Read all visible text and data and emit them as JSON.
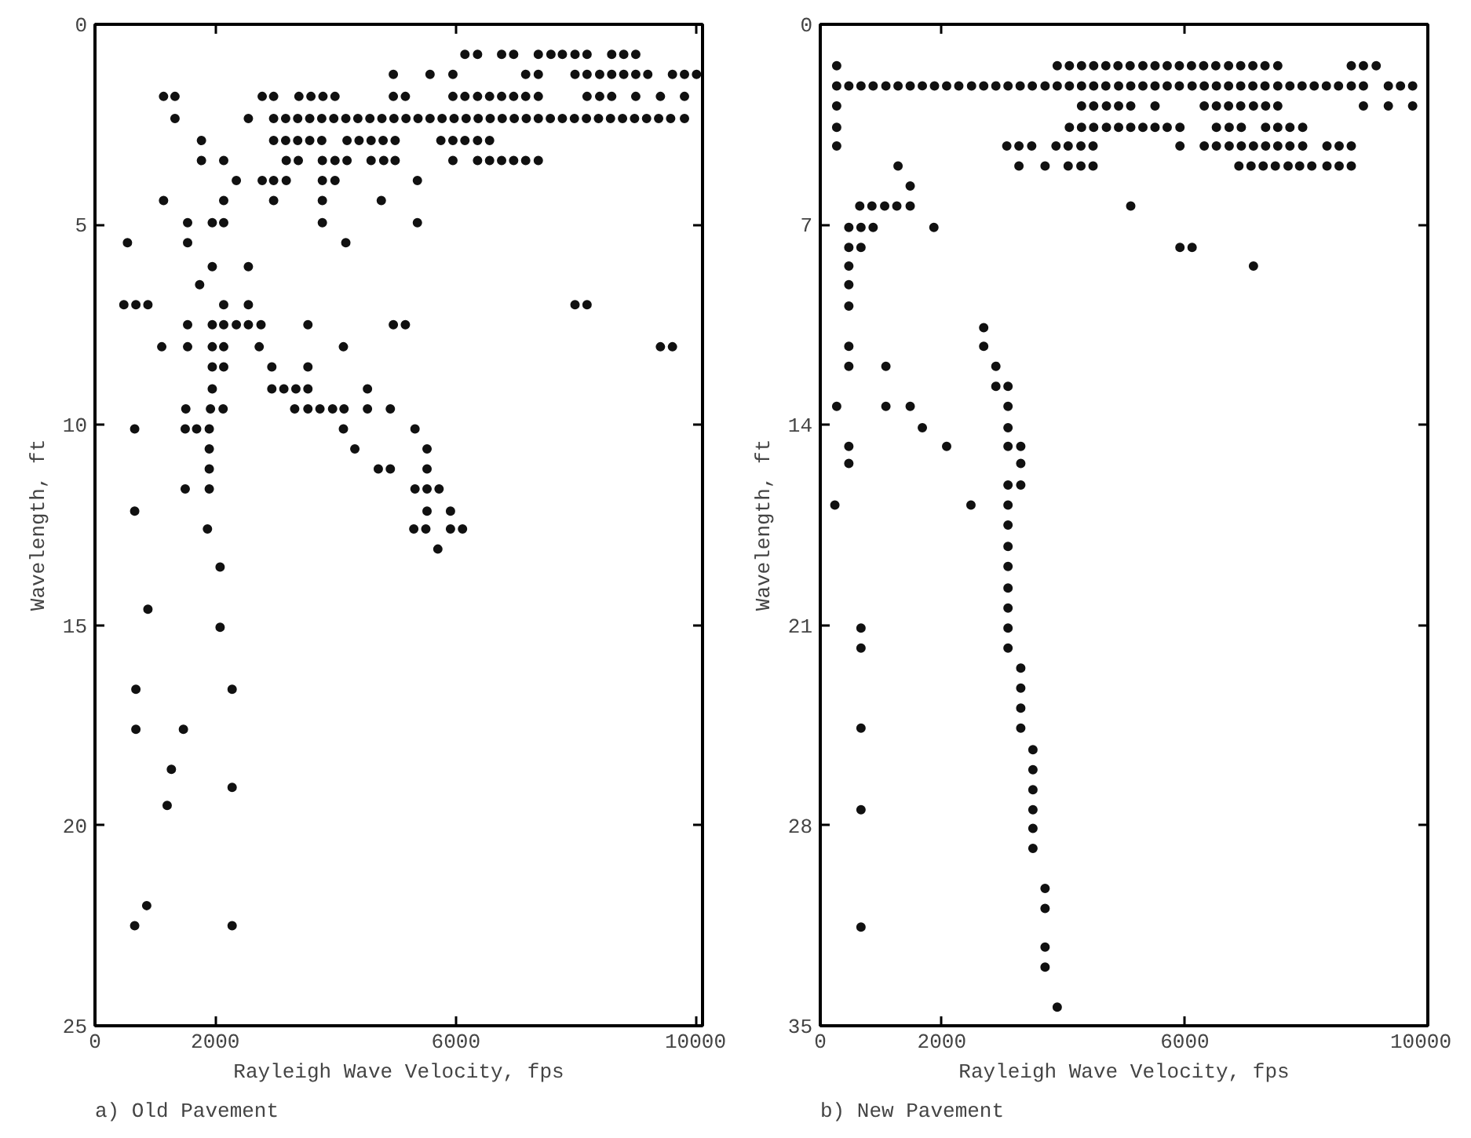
{
  "chart_data": [
    {
      "type": "scatter",
      "title": "a) Old Pavement",
      "xlabel": "Rayleigh Wave Velocity, fps",
      "ylabel": "Wavelength, ft",
      "marker": "circle",
      "grid": false,
      "xlim": [
        0,
        10100
      ],
      "ylim": [
        25,
        0
      ],
      "xticks": [
        0,
        2000,
        6000,
        10000
      ],
      "yticks": [
        0,
        5,
        10,
        15,
        20,
        25
      ],
      "series": [
        {
          "color": "#111111",
          "x": [
            6150,
            6360,
            6760,
            6960,
            7370,
            7580,
            7770,
            7980,
            8180,
            8590,
            8790,
            8990,
            4960,
            5570,
            5950,
            7160,
            7370,
            7980,
            8180,
            8390,
            8590,
            8790,
            8990,
            9190,
            9600,
            9800,
            10000,
            1140,
            1330,
            2780,
            2970,
            3390,
            3590,
            3790,
            3990,
            4960,
            5160,
            5950,
            6150,
            6360,
            6560,
            6760,
            6960,
            7160,
            7370,
            8180,
            8390,
            8590,
            8990,
            9400,
            9800,
            1330,
            2550,
            2970,
            3170,
            3370,
            3570,
            3770,
            3970,
            4170,
            4370,
            4570,
            4770,
            4970,
            5170,
            5370,
            5570,
            5770,
            5970,
            6170,
            6370,
            6570,
            6770,
            6970,
            7170,
            7370,
            7570,
            7770,
            7970,
            8170,
            8370,
            8570,
            8770,
            8970,
            9170,
            9370,
            9570,
            9800,
            1770,
            2970,
            3170,
            3370,
            3570,
            3770,
            4190,
            4390,
            4590,
            4790,
            4990,
            5750,
            5950,
            6150,
            6360,
            6560,
            1770,
            2140,
            3180,
            3380,
            3780,
            3990,
            4190,
            4590,
            4800,
            4990,
            5950,
            6360,
            6560,
            6760,
            6960,
            7160,
            7370,
            2350,
            2780,
            2970,
            3180,
            3780,
            3990,
            5360,
            1140,
            2140,
            2970,
            3780,
            4760,
            1540,
            1950,
            2140,
            3780,
            5360,
            540,
            1540,
            4170,
            1950,
            2550,
            1740,
            480,
            680,
            880,
            2140,
            2550,
            7980,
            8180,
            1540,
            1950,
            2140,
            2350,
            2550,
            2760,
            3540,
            4960,
            5160,
            1110,
            1540,
            1950,
            2140,
            2730,
            4130,
            9400,
            9600,
            1950,
            2140,
            2940,
            3540,
            1950,
            2940,
            3140,
            3340,
            3540,
            4530,
            1510,
            1920,
            2130,
            3320,
            3540,
            3740,
            3950,
            4140,
            4530,
            4910,
            660,
            1500,
            1690,
            1900,
            4130,
            5320,
            1900,
            4320,
            5520,
            1900,
            4710,
            4910,
            5520,
            1500,
            1900,
            5320,
            5520,
            5720,
            660,
            5520,
            5910,
            1870,
            5300,
            5500,
            5910,
            6110,
            5700,
            2080,
            880,
            2080,
            680,
            2280,
            680,
            1470,
            1270,
            2280,
            1200,
            860,
            660,
            2280
          ],
          "values": [
            0.75,
            0.75,
            0.75,
            0.75,
            0.75,
            0.75,
            0.75,
            0.75,
            0.75,
            0.75,
            0.75,
            0.75,
            1.25,
            1.25,
            1.25,
            1.25,
            1.25,
            1.25,
            1.25,
            1.25,
            1.25,
            1.25,
            1.25,
            1.25,
            1.25,
            1.25,
            1.25,
            1.8,
            1.8,
            1.8,
            1.8,
            1.8,
            1.8,
            1.8,
            1.8,
            1.8,
            1.8,
            1.8,
            1.8,
            1.8,
            1.8,
            1.8,
            1.8,
            1.8,
            1.8,
            1.8,
            1.8,
            1.8,
            1.8,
            1.8,
            1.8,
            2.35,
            2.35,
            2.35,
            2.35,
            2.35,
            2.35,
            2.35,
            2.35,
            2.35,
            2.35,
            2.35,
            2.35,
            2.35,
            2.35,
            2.35,
            2.35,
            2.35,
            2.35,
            2.35,
            2.35,
            2.35,
            2.35,
            2.35,
            2.35,
            2.35,
            2.35,
            2.35,
            2.35,
            2.35,
            2.35,
            2.35,
            2.35,
            2.35,
            2.35,
            2.35,
            2.35,
            2.35,
            2.9,
            2.9,
            2.9,
            2.9,
            2.9,
            2.9,
            2.9,
            2.9,
            2.9,
            2.9,
            2.9,
            2.9,
            2.9,
            2.9,
            2.9,
            2.9,
            3.4,
            3.4,
            3.4,
            3.4,
            3.4,
            3.4,
            3.4,
            3.4,
            3.4,
            3.4,
            3.4,
            3.4,
            3.4,
            3.4,
            3.4,
            3.4,
            3.4,
            3.9,
            3.9,
            3.9,
            3.9,
            3.9,
            3.9,
            3.9,
            4.4,
            4.4,
            4.4,
            4.4,
            4.4,
            4.95,
            4.95,
            4.95,
            4.95,
            4.95,
            5.45,
            5.45,
            5.45,
            6.05,
            6.05,
            6.5,
            7.0,
            7.0,
            7.0,
            7.0,
            7.0,
            7.0,
            7.0,
            7.5,
            7.5,
            7.5,
            7.5,
            7.5,
            7.5,
            7.5,
            7.5,
            7.5,
            8.05,
            8.05,
            8.05,
            8.05,
            8.05,
            8.05,
            8.05,
            8.05,
            8.55,
            8.55,
            8.55,
            8.55,
            9.1,
            9.1,
            9.1,
            9.1,
            9.1,
            9.1,
            9.6,
            9.6,
            9.6,
            9.6,
            9.6,
            9.6,
            9.6,
            9.6,
            9.6,
            9.6,
            10.1,
            10.1,
            10.1,
            10.1,
            10.1,
            10.1,
            10.6,
            10.6,
            10.6,
            11.1,
            11.1,
            11.1,
            11.1,
            11.6,
            11.6,
            11.6,
            11.6,
            11.6,
            12.15,
            12.15,
            12.15,
            12.6,
            12.6,
            12.6,
            12.6,
            12.6,
            13.1,
            13.55,
            14.6,
            15.05,
            16.6,
            16.6,
            17.6,
            17.6,
            18.6,
            19.05,
            19.5,
            22.0,
            22.5,
            22.5
          ]
        }
      ]
    },
    {
      "type": "scatter",
      "title": "b) New Pavement",
      "xlabel": "Rayleigh Wave Velocity, fps",
      "ylabel": "Wavelength, ft",
      "marker": "circle",
      "grid": false,
      "xlim": [
        0,
        10000
      ],
      "ylim": [
        35,
        0
      ],
      "xticks": [
        0,
        2000,
        6000,
        10000
      ],
      "yticks": [
        0,
        7,
        14,
        21,
        28,
        35
      ],
      "series": [
        {
          "color": "#111111",
          "x": [
            270,
            3900,
            4100,
            4300,
            4500,
            4700,
            4900,
            5100,
            5310,
            5510,
            5710,
            5910,
            6110,
            6310,
            6510,
            6720,
            6920,
            7120,
            7320,
            7530,
            8740,
            8940,
            9150,
            270,
            470,
            670,
            870,
            1080,
            1280,
            1480,
            1680,
            1880,
            2080,
            2280,
            2490,
            2690,
            2890,
            3090,
            3290,
            3490,
            3700,
            3900,
            4100,
            4300,
            4500,
            4700,
            4910,
            5110,
            5310,
            5510,
            5710,
            5910,
            6120,
            6320,
            6520,
            6720,
            6920,
            7120,
            7320,
            7530,
            7730,
            7930,
            8130,
            8330,
            8530,
            8740,
            8940,
            9350,
            9550,
            9750,
            270,
            4300,
            4500,
            4710,
            4910,
            5110,
            5510,
            6320,
            6520,
            6720,
            6920,
            7130,
            7330,
            7530,
            8940,
            9350,
            9750,
            270,
            4100,
            4300,
            4500,
            4710,
            4910,
            5110,
            5310,
            5510,
            5710,
            5920,
            6520,
            6730,
            6930,
            7330,
            7530,
            7730,
            7940,
            270,
            3070,
            3270,
            3480,
            3880,
            4080,
            4290,
            4490,
            5920,
            6320,
            6520,
            6730,
            6930,
            7130,
            7330,
            7530,
            7730,
            7940,
            8340,
            8540,
            8740,
            1280,
            3270,
            3700,
            4080,
            4290,
            4490,
            6890,
            7090,
            7290,
            7490,
            7700,
            7890,
            8090,
            8340,
            8540,
            8740,
            1480,
            650,
            850,
            1060,
            1260,
            1480,
            5110,
            470,
            670,
            870,
            1870,
            470,
            670,
            5920,
            6120,
            470,
            7130,
            470,
            470,
            2690,
            470,
            2690,
            470,
            1080,
            2890,
            2890,
            3090,
            270,
            1080,
            1480,
            3090,
            1680,
            3090,
            470,
            2080,
            3090,
            3300,
            470,
            3300,
            3090,
            3300,
            240,
            2480,
            3090,
            3090,
            3090,
            3090,
            3090,
            3090,
            670,
            3090,
            670,
            3090,
            3300,
            3300,
            3300,
            670,
            3300,
            3500,
            3500,
            3500,
            670,
            3500,
            3500,
            3500,
            3700,
            3700,
            670,
            3700,
            3700,
            3900
          ],
          "values": [
            1.45,
            1.45,
            1.45,
            1.45,
            1.45,
            1.45,
            1.45,
            1.45,
            1.45,
            1.45,
            1.45,
            1.45,
            1.45,
            1.45,
            1.45,
            1.45,
            1.45,
            1.45,
            1.45,
            1.45,
            1.45,
            1.45,
            1.45,
            2.15,
            2.15,
            2.15,
            2.15,
            2.15,
            2.15,
            2.15,
            2.15,
            2.15,
            2.15,
            2.15,
            2.15,
            2.15,
            2.15,
            2.15,
            2.15,
            2.15,
            2.15,
            2.15,
            2.15,
            2.15,
            2.15,
            2.15,
            2.15,
            2.15,
            2.15,
            2.15,
            2.15,
            2.15,
            2.15,
            2.15,
            2.15,
            2.15,
            2.15,
            2.15,
            2.15,
            2.15,
            2.15,
            2.15,
            2.15,
            2.15,
            2.15,
            2.15,
            2.15,
            2.15,
            2.15,
            2.15,
            2.85,
            2.85,
            2.85,
            2.85,
            2.85,
            2.85,
            2.85,
            2.85,
            2.85,
            2.85,
            2.85,
            2.85,
            2.85,
            2.85,
            2.85,
            2.85,
            2.85,
            3.6,
            3.6,
            3.6,
            3.6,
            3.6,
            3.6,
            3.6,
            3.6,
            3.6,
            3.6,
            3.6,
            3.6,
            3.6,
            3.6,
            3.6,
            3.6,
            3.6,
            3.6,
            4.25,
            4.25,
            4.25,
            4.25,
            4.25,
            4.25,
            4.25,
            4.25,
            4.25,
            4.25,
            4.25,
            4.25,
            4.25,
            4.25,
            4.25,
            4.25,
            4.25,
            4.25,
            4.25,
            4.25,
            4.25,
            4.95,
            4.95,
            4.95,
            4.95,
            4.95,
            4.95,
            4.95,
            4.95,
            4.95,
            4.95,
            4.95,
            4.95,
            4.95,
            4.95,
            4.95,
            4.95,
            5.65,
            6.35,
            6.35,
            6.35,
            6.35,
            6.35,
            6.35,
            7.1,
            7.1,
            7.1,
            7.1,
            7.8,
            7.8,
            7.8,
            7.8,
            8.45,
            8.45,
            9.1,
            9.85,
            10.6,
            11.25,
            11.25,
            11.95,
            11.95,
            11.95,
            12.65,
            12.65,
            13.35,
            13.35,
            13.35,
            13.35,
            14.1,
            14.1,
            14.75,
            14.75,
            14.75,
            14.75,
            15.35,
            15.35,
            16.1,
            16.1,
            16.8,
            16.8,
            16.8,
            17.5,
            18.25,
            18.95,
            19.7,
            20.4,
            21.1,
            21.1,
            21.8,
            21.8,
            22.5,
            23.2,
            23.9,
            24.6,
            24.6,
            25.35,
            26.05,
            26.75,
            27.45,
            27.45,
            28.1,
            28.8,
            30.2,
            30.9,
            31.55,
            32.25,
            32.95,
            34.35
          ]
        }
      ]
    }
  ]
}
